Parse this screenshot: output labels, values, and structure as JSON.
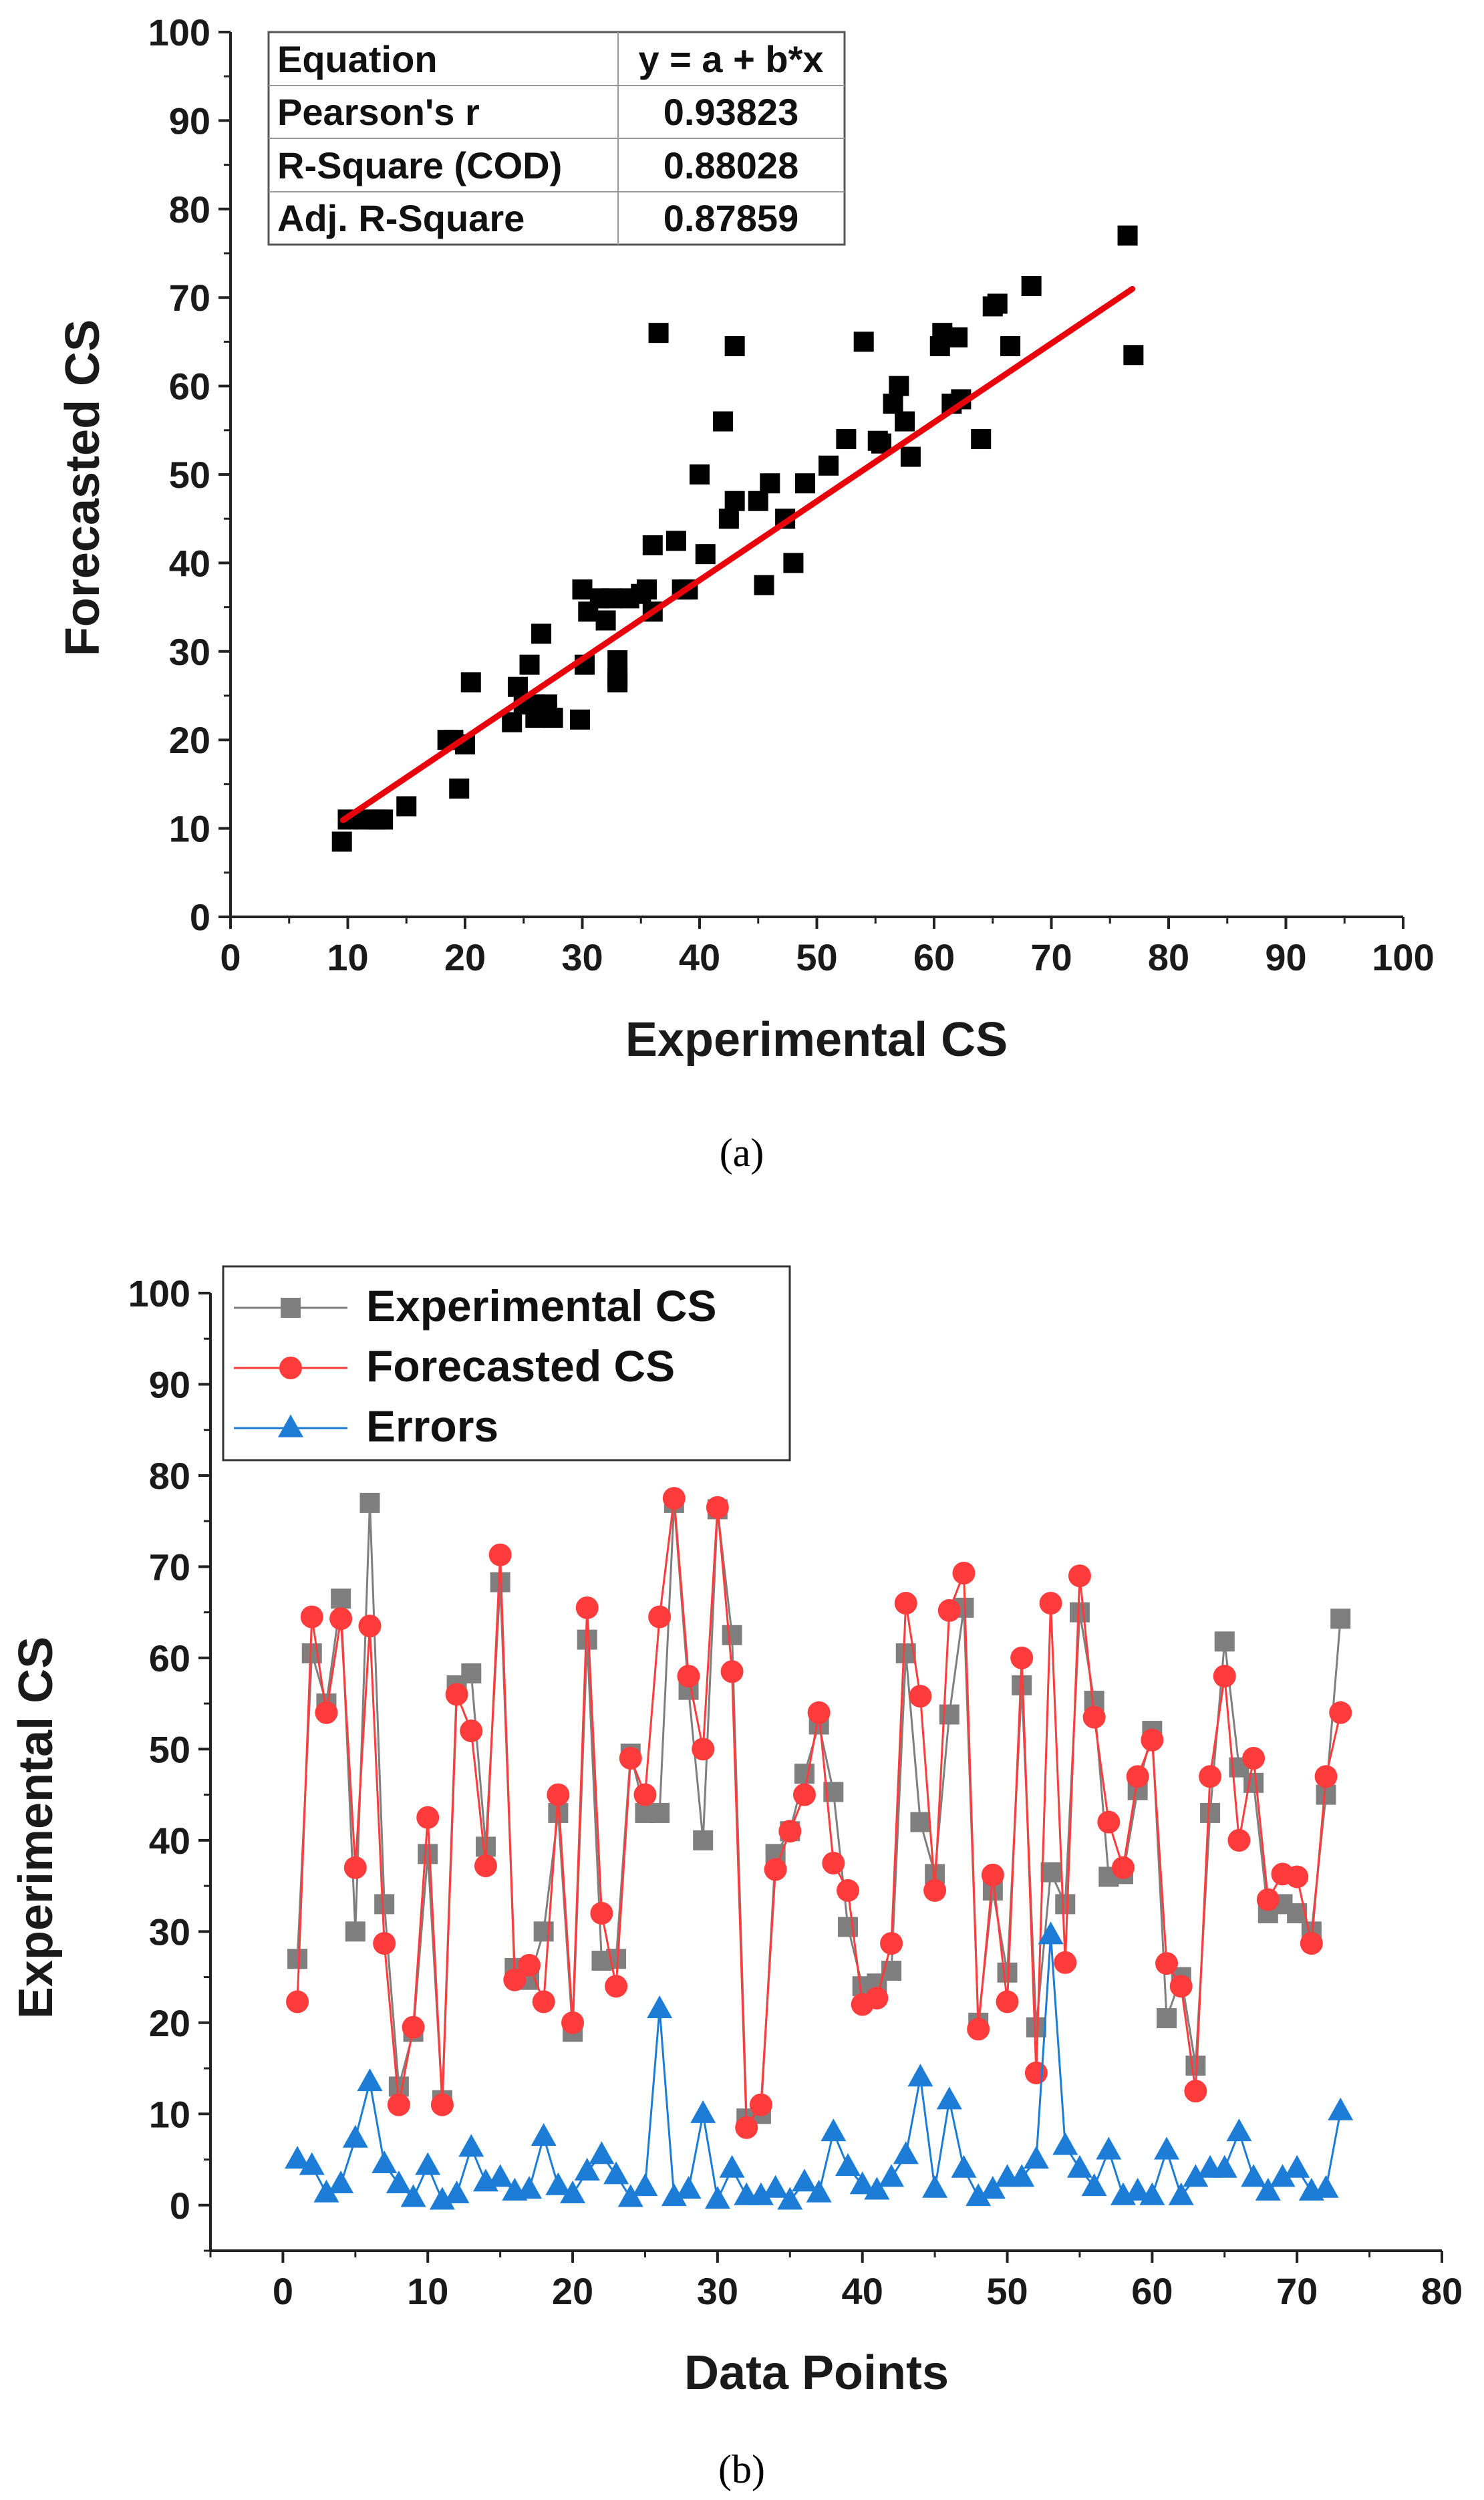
{
  "chart_data": [
    {
      "id": "a",
      "type": "scatter",
      "caption": "(a)",
      "xlabel": "Experimental CS",
      "ylabel": "Forecasted CS",
      "xlim": [
        0,
        100
      ],
      "ylim": [
        0,
        100
      ],
      "xticks": [
        0,
        10,
        20,
        30,
        40,
        50,
        60,
        70,
        80,
        90,
        100
      ],
      "yticks": [
        0,
        10,
        20,
        30,
        40,
        50,
        60,
        70,
        80,
        90,
        100
      ],
      "points_color": "#000000",
      "fit_color": "#e8000b",
      "fit_line": {
        "intercept": 2.37,
        "slope": 0.892,
        "x_range": [
          9.6,
          76.9
        ]
      },
      "stats_table": [
        [
          "Equation",
          "y = a + b*x"
        ],
        [
          "Pearson's r",
          "0.93823"
        ],
        [
          "R-Square (COD)",
          "0.88028"
        ],
        [
          "Adj. R-Square",
          "0.87859"
        ]
      ],
      "points": [
        [
          9.5,
          8.5
        ],
        [
          10,
          11
        ],
        [
          11.5,
          11
        ],
        [
          12.5,
          11
        ],
        [
          13,
          11
        ],
        [
          15,
          12.5
        ],
        [
          18.5,
          20
        ],
        [
          19,
          20
        ],
        [
          19.5,
          14.5
        ],
        [
          20,
          19.5
        ],
        [
          20.5,
          26.5
        ],
        [
          24,
          22
        ],
        [
          24.5,
          26
        ],
        [
          25,
          24
        ],
        [
          25.5,
          28.5
        ],
        [
          26,
          22.5
        ],
        [
          26,
          24
        ],
        [
          26.5,
          32
        ],
        [
          27,
          23
        ],
        [
          27,
          24
        ],
        [
          27.5,
          22.5
        ],
        [
          29.8,
          22.3
        ],
        [
          30,
          37
        ],
        [
          30.2,
          28.5
        ],
        [
          30.5,
          34.5
        ],
        [
          31.5,
          36
        ],
        [
          32,
          33.5
        ],
        [
          32.5,
          36
        ],
        [
          33,
          29
        ],
        [
          33,
          27
        ],
        [
          33,
          26.5
        ],
        [
          34,
          36
        ],
        [
          35,
          36.5
        ],
        [
          35.5,
          37
        ],
        [
          36,
          42
        ],
        [
          36,
          34.5
        ],
        [
          36.5,
          66
        ],
        [
          38,
          42.5
        ],
        [
          38.5,
          37
        ],
        [
          39,
          37
        ],
        [
          40,
          50
        ],
        [
          40.5,
          41
        ],
        [
          42,
          56
        ],
        [
          42.5,
          45
        ],
        [
          43,
          47
        ],
        [
          43,
          64.5
        ],
        [
          45,
          47
        ],
        [
          45.5,
          37.5
        ],
        [
          46,
          49
        ],
        [
          47.3,
          45
        ],
        [
          48,
          40
        ],
        [
          49,
          49
        ],
        [
          51,
          51
        ],
        [
          52.5,
          54
        ],
        [
          54,
          65
        ],
        [
          55.2,
          53.8
        ],
        [
          55.5,
          53.5
        ],
        [
          56.5,
          58
        ],
        [
          57,
          60
        ],
        [
          57.5,
          56
        ],
        [
          58,
          52
        ],
        [
          60.5,
          64.5
        ],
        [
          60.7,
          66
        ],
        [
          61.5,
          58
        ],
        [
          62,
          65.5
        ],
        [
          62.3,
          58.5
        ],
        [
          64,
          54
        ],
        [
          65,
          69
        ],
        [
          65.4,
          69.3
        ],
        [
          66.5,
          64.5
        ],
        [
          68.3,
          71.3
        ],
        [
          76.5,
          77
        ],
        [
          77,
          63.5
        ]
      ]
    },
    {
      "id": "b",
      "type": "line",
      "caption": "(b)",
      "xlabel": "Data Points",
      "ylabel": "Experimental CS",
      "xlim": [
        -5,
        80
      ],
      "ylim": [
        -5,
        100
      ],
      "xticks": [
        0,
        10,
        20,
        30,
        40,
        50,
        60,
        70,
        80
      ],
      "yticks": [
        0,
        10,
        20,
        30,
        40,
        50,
        60,
        70,
        80,
        90,
        100
      ],
      "x_start": 1,
      "series": [
        {
          "name": "Experimental CS",
          "marker": "square",
          "color": "#7f7f7f",
          "values": [
            27,
            60.5,
            55,
            66.5,
            30,
            77,
            33,
            13,
            19,
            38.5,
            11.5,
            57,
            58.3,
            39.3,
            68.3,
            26,
            24.7,
            30,
            43,
            19,
            62,
            26.8,
            27,
            49.5,
            43,
            43,
            77,
            56.5,
            40,
            76.3,
            62.5,
            9.5,
            10,
            38.5,
            41,
            47.3,
            52.7,
            45.3,
            30.5,
            24,
            24.3,
            25.7,
            60.5,
            42,
            36.3,
            53.8,
            65.5,
            20,
            34.5,
            25.5,
            57,
            19.5,
            36.5,
            33,
            65,
            55.3,
            36,
            36.3,
            45.5,
            52,
            20.5,
            25,
            15.3,
            43,
            61.8,
            48,
            46.3,
            32,
            33,
            32,
            30,
            45,
            64.3
          ]
        },
        {
          "name": "Forecasted CS",
          "marker": "circle",
          "color": "#ff3b3b",
          "values": [
            22.3,
            64.5,
            54,
            64.3,
            37,
            63.5,
            28.7,
            11,
            19.5,
            42.5,
            11,
            56,
            52,
            37.2,
            71.3,
            24.7,
            26.3,
            22.3,
            45,
            20,
            65.5,
            32,
            24,
            49,
            45,
            64.5,
            77.5,
            58,
            50,
            76.5,
            58.5,
            8.5,
            11,
            36.8,
            41,
            45,
            54,
            37.5,
            34.5,
            22,
            22.7,
            28.7,
            66,
            55.8,
            34.5,
            65.2,
            69.3,
            19.3,
            36.2,
            22.3,
            60,
            14.5,
            66,
            26.6,
            69,
            53.5,
            42,
            37,
            47,
            51,
            26.5,
            24,
            12.5,
            47,
            58,
            40,
            49,
            33.5,
            36.3,
            36,
            28.7,
            47,
            54
          ]
        },
        {
          "name": "Errors",
          "marker": "triangle",
          "color": "#1c7cd6",
          "values": [
            5,
            4.3,
            1.3,
            2.3,
            7.3,
            13.5,
            4.5,
            2.3,
            0.8,
            4.3,
            0.5,
            1.2,
            6.3,
            2.5,
            3,
            1.5,
            1.7,
            7.5,
            2.1,
            1.2,
            3.7,
            5.5,
            3.3,
            0.8,
            2,
            21.5,
            0.9,
            1.7,
            10,
            0.6,
            4,
            1,
            1,
            1.8,
            0.5,
            2.5,
            1.3,
            8,
            4.2,
            2.2,
            1.6,
            3,
            5.5,
            14,
            1.8,
            11.5,
            4,
            0.9,
            1.7,
            3,
            3,
            5,
            29.6,
            6.5,
            4,
            2,
            6,
            1,
            1.5,
            1,
            6,
            1,
            3,
            4,
            4,
            8,
            3,
            1.5,
            3,
            4,
            1.5,
            1.8,
            10.3
          ]
        }
      ]
    }
  ]
}
